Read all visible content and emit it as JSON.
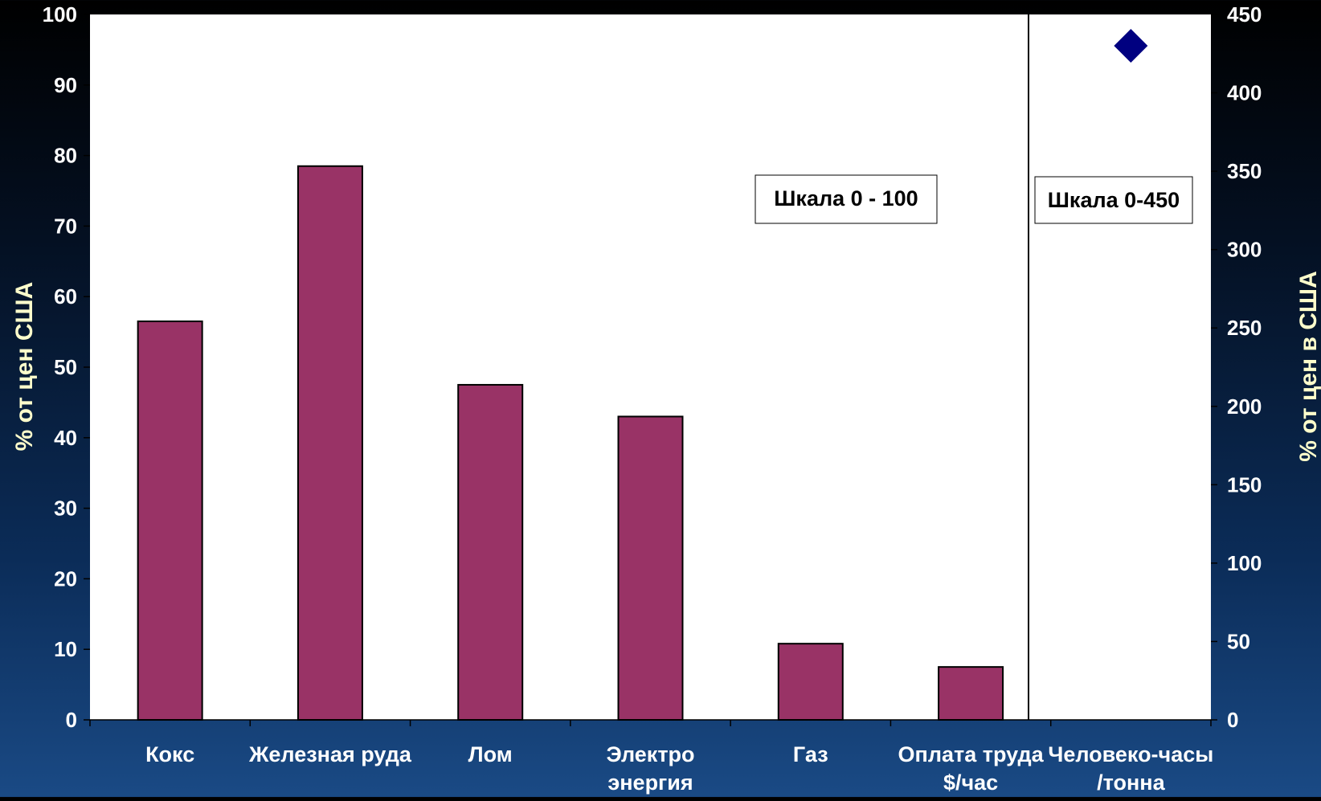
{
  "chart_data": {
    "type": "bar",
    "categories": [
      "Кокс",
      "Железная руда",
      "Лом",
      "Электро|энергия",
      "Газ",
      "Оплата труда|$/час",
      "Человеко-часы|/тонна"
    ],
    "series": [
      {
        "axis": "left",
        "type": "bar",
        "values": [
          56.5,
          78.5,
          47.5,
          43,
          10.8,
          7.5,
          null
        ]
      },
      {
        "axis": "right",
        "type": "scatter",
        "values": [
          null,
          null,
          null,
          null,
          null,
          null,
          430
        ]
      }
    ],
    "ylabel": "% от цен США",
    "y2label": "% от цен в США",
    "ylim": [
      0,
      100
    ],
    "y2lim": [
      0,
      450
    ],
    "yticks": [
      0,
      10,
      20,
      30,
      40,
      50,
      60,
      70,
      80,
      90,
      100
    ],
    "y2ticks": [
      0,
      50,
      100,
      150,
      200,
      250,
      300,
      350,
      400,
      450
    ],
    "annotations": [
      "Шкала 0 - 100",
      "Шкала 0-450"
    ],
    "colors": {
      "bar": "#993366",
      "marker": "#000080",
      "axis_label": "#ffffcc",
      "tick_label": "#ffffff"
    }
  }
}
